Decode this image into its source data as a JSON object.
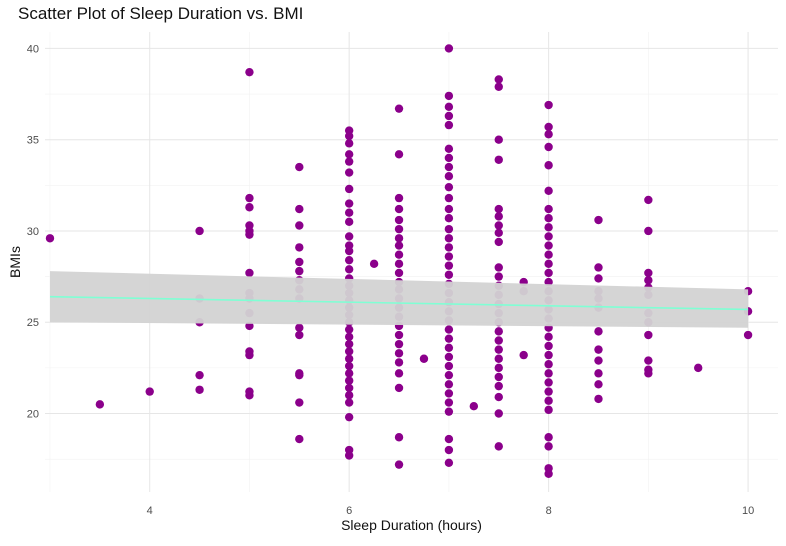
{
  "chart_data": {
    "type": "scatter",
    "title": "Scatter Plot of Sleep Duration vs. BMI",
    "xlabel": "Sleep Duration (hours)",
    "ylabel": "BMIs",
    "xlim": [
      2.95,
      10.3
    ],
    "ylim": [
      15.7,
      40.9
    ],
    "xticks": [
      4,
      6,
      8,
      10
    ],
    "yticks": [
      20,
      25,
      30,
      35,
      40
    ],
    "grid": true,
    "point_color": "#8B008B",
    "trend_color": "#7FFFD4",
    "band_color": "#D3D3D3",
    "trend": {
      "x": [
        3,
        10
      ],
      "y": [
        26.4,
        25.7
      ]
    },
    "band": {
      "x": [
        3,
        10
      ],
      "lower": [
        25.0,
        24.7
      ],
      "upper": [
        27.8,
        26.8
      ]
    },
    "points": [
      [
        3,
        29.6
      ],
      [
        3.5,
        20.5
      ],
      [
        4,
        21.2
      ],
      [
        4.5,
        30.0
      ],
      [
        4.5,
        26.3
      ],
      [
        4.5,
        25.0
      ],
      [
        4.5,
        22.1
      ],
      [
        4.5,
        21.3
      ],
      [
        5,
        38.7
      ],
      [
        5,
        31.8
      ],
      [
        5,
        31.3
      ],
      [
        5,
        30.3
      ],
      [
        5,
        30.0
      ],
      [
        5,
        29.8
      ],
      [
        5,
        27.7
      ],
      [
        5,
        26.6
      ],
      [
        5,
        26.3
      ],
      [
        5,
        25.5
      ],
      [
        5,
        24.8
      ],
      [
        5,
        23.4
      ],
      [
        5,
        23.2
      ],
      [
        5,
        21.2
      ],
      [
        5,
        21.0
      ],
      [
        5.5,
        33.5
      ],
      [
        5.5,
        31.2
      ],
      [
        5.5,
        30.3
      ],
      [
        5.5,
        29.1
      ],
      [
        5.5,
        28.3
      ],
      [
        5.5,
        27.8
      ],
      [
        5.5,
        27.3
      ],
      [
        5.5,
        26.8
      ],
      [
        5.5,
        26.3
      ],
      [
        5.5,
        24.7
      ],
      [
        5.5,
        24.3
      ],
      [
        5.5,
        22.2
      ],
      [
        5.5,
        22.1
      ],
      [
        5.5,
        20.6
      ],
      [
        5.5,
        18.6
      ],
      [
        6,
        35.5
      ],
      [
        6,
        35.2
      ],
      [
        6,
        34.8
      ],
      [
        6,
        34.2
      ],
      [
        6,
        33.8
      ],
      [
        6,
        33.2
      ],
      [
        6,
        32.3
      ],
      [
        6,
        31.5
      ],
      [
        6,
        31.0
      ],
      [
        6,
        30.5
      ],
      [
        6,
        29.7
      ],
      [
        6,
        29.2
      ],
      [
        6,
        28.9
      ],
      [
        6,
        28.4
      ],
      [
        6,
        27.9
      ],
      [
        6,
        27.4
      ],
      [
        6,
        27.0
      ],
      [
        6,
        26.6
      ],
      [
        6,
        26.2
      ],
      [
        6,
        25.8
      ],
      [
        6,
        25.4
      ],
      [
        6,
        25.0
      ],
      [
        6,
        24.6
      ],
      [
        6,
        24.2
      ],
      [
        6,
        23.8
      ],
      [
        6,
        23.4
      ],
      [
        6,
        23.0
      ],
      [
        6,
        22.6
      ],
      [
        6,
        22.2
      ],
      [
        6,
        21.8
      ],
      [
        6,
        21.4
      ],
      [
        6,
        21.0
      ],
      [
        6,
        20.6
      ],
      [
        6,
        19.8
      ],
      [
        6,
        18.0
      ],
      [
        6,
        17.7
      ],
      [
        6.25,
        28.2
      ],
      [
        6.75,
        23.0
      ],
      [
        6.5,
        36.7
      ],
      [
        6.5,
        34.2
      ],
      [
        6.5,
        31.8
      ],
      [
        6.5,
        31.2
      ],
      [
        6.5,
        30.6
      ],
      [
        6.5,
        30.1
      ],
      [
        6.5,
        29.6
      ],
      [
        6.5,
        29.2
      ],
      [
        6.5,
        28.7
      ],
      [
        6.5,
        28.2
      ],
      [
        6.5,
        27.7
      ],
      [
        6.5,
        27.2
      ],
      [
        6.5,
        26.8
      ],
      [
        6.5,
        26.3
      ],
      [
        6.5,
        25.8
      ],
      [
        6.5,
        25.3
      ],
      [
        6.5,
        24.8
      ],
      [
        6.5,
        24.3
      ],
      [
        6.5,
        23.8
      ],
      [
        6.5,
        23.3
      ],
      [
        6.5,
        22.8
      ],
      [
        6.5,
        22.2
      ],
      [
        6.5,
        21.4
      ],
      [
        6.5,
        18.7
      ],
      [
        6.5,
        17.2
      ],
      [
        7,
        40.0
      ],
      [
        7,
        37.4
      ],
      [
        7,
        36.8
      ],
      [
        7,
        36.3
      ],
      [
        7,
        35.8
      ],
      [
        7,
        34.5
      ],
      [
        7,
        34.0
      ],
      [
        7,
        33.5
      ],
      [
        7,
        33.0
      ],
      [
        7,
        32.4
      ],
      [
        7,
        31.8
      ],
      [
        7,
        31.2
      ],
      [
        7,
        30.7
      ],
      [
        7,
        30.1
      ],
      [
        7,
        29.6
      ],
      [
        7,
        29.1
      ],
      [
        7,
        28.6
      ],
      [
        7,
        28.1
      ],
      [
        7,
        27.6
      ],
      [
        7,
        27.1
      ],
      [
        7,
        26.6
      ],
      [
        7,
        26.1
      ],
      [
        7,
        25.6
      ],
      [
        7,
        25.1
      ],
      [
        7,
        24.6
      ],
      [
        7,
        24.1
      ],
      [
        7,
        23.6
      ],
      [
        7,
        23.1
      ],
      [
        7,
        22.6
      ],
      [
        7,
        22.1
      ],
      [
        7,
        21.6
      ],
      [
        7,
        21.1
      ],
      [
        7,
        20.6
      ],
      [
        7,
        20.1
      ],
      [
        7,
        18.6
      ],
      [
        7,
        18.0
      ],
      [
        7,
        17.3
      ],
      [
        7.25,
        20.4
      ],
      [
        7.5,
        38.3
      ],
      [
        7.5,
        37.9
      ],
      [
        7.5,
        35.0
      ],
      [
        7.5,
        33.9
      ],
      [
        7.5,
        31.2
      ],
      [
        7.5,
        30.8
      ],
      [
        7.5,
        30.3
      ],
      [
        7.5,
        29.9
      ],
      [
        7.5,
        29.4
      ],
      [
        7.5,
        28.0
      ],
      [
        7.5,
        27.5
      ],
      [
        7.5,
        27.0
      ],
      [
        7.5,
        26.5
      ],
      [
        7.5,
        26.0
      ],
      [
        7.5,
        25.5
      ],
      [
        7.5,
        25.0
      ],
      [
        7.5,
        24.5
      ],
      [
        7.5,
        24.0
      ],
      [
        7.5,
        23.5
      ],
      [
        7.5,
        23.0
      ],
      [
        7.5,
        22.5
      ],
      [
        7.5,
        22.0
      ],
      [
        7.5,
        21.5
      ],
      [
        7.5,
        20.9
      ],
      [
        7.5,
        20.0
      ],
      [
        7.5,
        18.2
      ],
      [
        7.75,
        27.2
      ],
      [
        7.75,
        26.7
      ],
      [
        7.75,
        23.2
      ],
      [
        8,
        36.9
      ],
      [
        8,
        35.7
      ],
      [
        8,
        35.3
      ],
      [
        8,
        34.6
      ],
      [
        8,
        33.6
      ],
      [
        8,
        32.2
      ],
      [
        8,
        31.2
      ],
      [
        8,
        30.7
      ],
      [
        8,
        30.2
      ],
      [
        8,
        29.7
      ],
      [
        8,
        29.2
      ],
      [
        8,
        28.7
      ],
      [
        8,
        28.2
      ],
      [
        8,
        27.7
      ],
      [
        8,
        27.2
      ],
      [
        8,
        26.7
      ],
      [
        8,
        26.2
      ],
      [
        8,
        25.7
      ],
      [
        8,
        25.2
      ],
      [
        8,
        24.7
      ],
      [
        8,
        24.2
      ],
      [
        8,
        23.7
      ],
      [
        8,
        23.2
      ],
      [
        8,
        22.7
      ],
      [
        8,
        22.2
      ],
      [
        8,
        21.7
      ],
      [
        8,
        21.2
      ],
      [
        8,
        20.7
      ],
      [
        8,
        20.2
      ],
      [
        8,
        18.7
      ],
      [
        8,
        18.2
      ],
      [
        8,
        17.0
      ],
      [
        8,
        16.7
      ],
      [
        8.5,
        30.6
      ],
      [
        8.5,
        28.0
      ],
      [
        8.5,
        27.4
      ],
      [
        8.5,
        26.7
      ],
      [
        8.5,
        26.3
      ],
      [
        8.5,
        25.8
      ],
      [
        8.5,
        24.5
      ],
      [
        8.5,
        23.5
      ],
      [
        8.5,
        22.9
      ],
      [
        8.5,
        22.2
      ],
      [
        8.5,
        21.6
      ],
      [
        8.5,
        20.8
      ],
      [
        9,
        31.7
      ],
      [
        9,
        30.0
      ],
      [
        9,
        27.7
      ],
      [
        9,
        27.3
      ],
      [
        9,
        26.9
      ],
      [
        9,
        26.5
      ],
      [
        9,
        25.5
      ],
      [
        9,
        25.0
      ],
      [
        9,
        24.3
      ],
      [
        9,
        22.9
      ],
      [
        9,
        22.4
      ],
      [
        9,
        22.2
      ],
      [
        9.5,
        22.5
      ],
      [
        10,
        26.7
      ],
      [
        10,
        25.6
      ],
      [
        10,
        24.3
      ]
    ]
  }
}
